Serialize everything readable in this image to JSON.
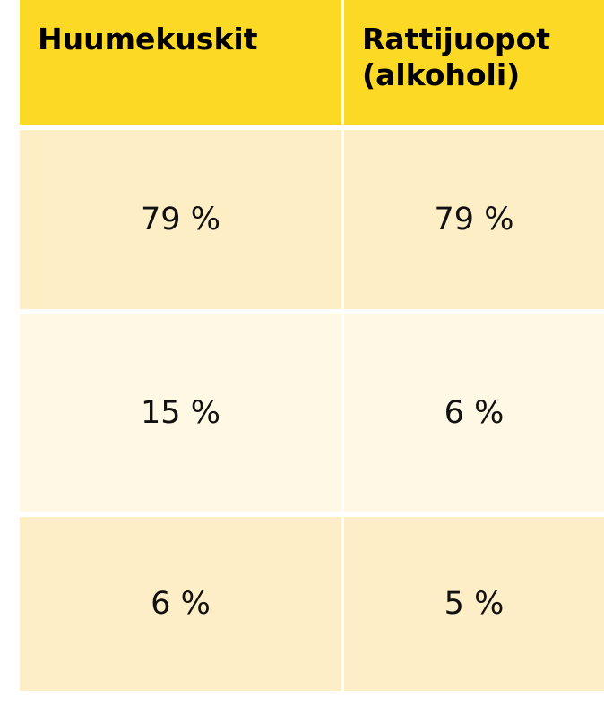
{
  "table": {
    "headers": [
      "Huumekuskit",
      "Rattijuopot (alkoholi)"
    ],
    "rows": [
      [
        "79 %",
        "79 %"
      ],
      [
        "15 %",
        "6 %"
      ],
      [
        "6 %",
        "5 %"
      ]
    ]
  }
}
